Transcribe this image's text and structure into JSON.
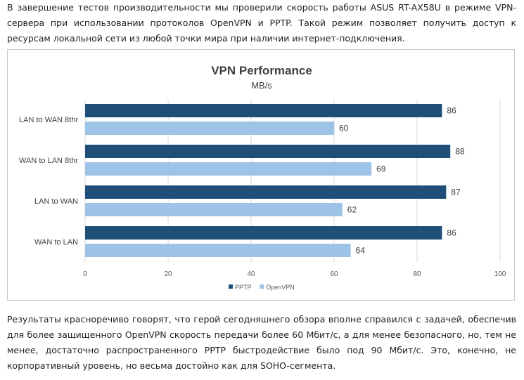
{
  "article": {
    "para1": "В завершение тестов производительности мы проверили скорость работы ASUS RT-AX58U в режиме VPN-сервера при использовании протоколов OpenVPN и PPTP. Такой режим позволяет получить доступ к ресурсам локальной сети из любой точки мира при наличии интернет-подключения.",
    "para2": "Результаты красноречиво говорят, что герой сегодняшнего обзора вполне справился с задачей, обеспечив для более защищенного OpenVPN скорость передачи более 60 Мбит/с, а для менее безопасного, но, тем не менее, достаточно распространенного PPTP быстродействие было под 90 Мбит/с. Это, конечно, не корпоративный уровень, но весьма достойно как для SOHO-сегмента."
  },
  "chart_data": {
    "type": "bar",
    "orientation": "horizontal",
    "title": "VPN Performance",
    "subtitle": "MB/s",
    "categories": [
      "LAN to WAN 8thr",
      "WAN to LAN 8thr",
      "LAN to WAN",
      "WAN to LAN"
    ],
    "series": [
      {
        "name": "PPTP",
        "color": "#1f4e79",
        "values": [
          86,
          88,
          87,
          86
        ]
      },
      {
        "name": "OpenVPN",
        "color": "#9dc3e6",
        "values": [
          60,
          69,
          62,
          64
        ]
      }
    ],
    "xlim": [
      0,
      100
    ],
    "xticks": [
      0,
      20,
      40,
      60,
      80,
      100
    ],
    "grid": true,
    "legend_position": "bottom-left",
    "data_labels": true
  }
}
